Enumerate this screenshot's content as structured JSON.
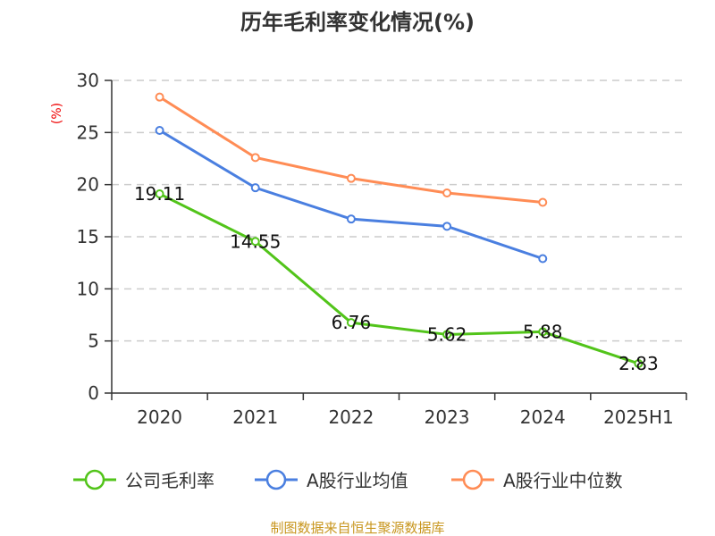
{
  "chart_data": {
    "type": "line",
    "title": "历年毛利率变化情况(%)",
    "ylabel": "(%)",
    "categories": [
      "2020",
      "2021",
      "2022",
      "2023",
      "2024",
      "2025H1"
    ],
    "ylim": [
      0,
      30
    ],
    "yticks": [
      0,
      5,
      10,
      15,
      20,
      25,
      30
    ],
    "grid": true,
    "legend": "bottom",
    "series": [
      {
        "name": "公司毛利率",
        "color": "#52c41a",
        "values": [
          19.11,
          14.55,
          6.76,
          5.62,
          5.88,
          2.83
        ],
        "labels": [
          "19.11",
          "14.55",
          "6.76",
          "5.62",
          "5.88",
          "2.83"
        ]
      },
      {
        "name": "A股行业均值",
        "color": "#4a7fe0",
        "values": [
          25.2,
          19.7,
          16.7,
          16.0,
          12.9,
          null
        ]
      },
      {
        "name": "A股行业中位数",
        "color": "#ff8c55",
        "values": [
          28.4,
          22.6,
          20.6,
          19.2,
          18.3,
          null
        ]
      }
    ]
  },
  "source": "制图数据来自恒生聚源数据库"
}
